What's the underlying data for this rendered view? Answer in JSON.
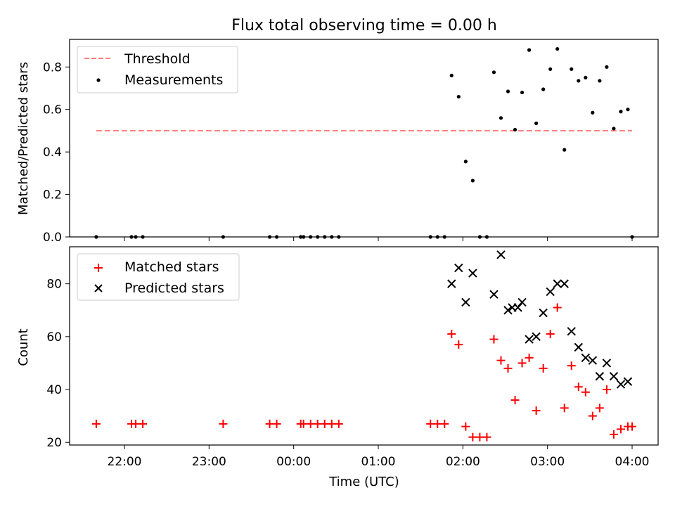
{
  "title": "Flux total observing time = 0.00 h",
  "chart_data": [
    {
      "type": "scatter",
      "ylabel": "Matched/Predicted stars",
      "ylim": [
        0,
        0.93
      ],
      "yticks": [
        "0.0",
        "0.2",
        "0.4",
        "0.6",
        "0.8"
      ],
      "yticks_values": [
        0,
        0.2,
        0.4,
        0.6,
        0.8
      ],
      "legend_position": "upper-left",
      "threshold": {
        "name": "Threshold",
        "value": 0.5,
        "x_range": [
          "21:40",
          "04:00"
        ],
        "color": "#ff7f7f",
        "style": "dashed"
      },
      "series": [
        {
          "name": "Measurements",
          "color": "#000000",
          "marker": "dot",
          "points": [
            [
              "21:40",
              0
            ],
            [
              "22:05",
              0
            ],
            [
              "22:08",
              0
            ],
            [
              "22:13",
              0
            ],
            [
              "23:10",
              0
            ],
            [
              "23:43",
              0
            ],
            [
              "23:48",
              0
            ],
            [
              "00:05",
              0
            ],
            [
              "00:07",
              0
            ],
            [
              "00:12",
              0
            ],
            [
              "00:17",
              0
            ],
            [
              "00:22",
              0
            ],
            [
              "00:27",
              0
            ],
            [
              "00:32",
              0
            ],
            [
              "01:37",
              0
            ],
            [
              "01:42",
              0
            ],
            [
              "01:47",
              0
            ],
            [
              "01:52",
              0.76
            ],
            [
              "01:57",
              0.66
            ],
            [
              "02:02",
              0.355
            ],
            [
              "02:07",
              0.265
            ],
            [
              "02:12",
              0
            ],
            [
              "02:17",
              0
            ],
            [
              "02:22",
              0.775
            ],
            [
              "02:27",
              0.56
            ],
            [
              "02:32",
              0.685
            ],
            [
              "02:37",
              0.505
            ],
            [
              "02:42",
              0.68
            ],
            [
              "02:47",
              0.88
            ],
            [
              "02:52",
              0.535
            ],
            [
              "02:57",
              0.695
            ],
            [
              "03:02",
              0.79
            ],
            [
              "03:07",
              0.885
            ],
            [
              "03:12",
              0.41
            ],
            [
              "03:17",
              0.79
            ],
            [
              "03:22",
              0.735
            ],
            [
              "03:27",
              0.75
            ],
            [
              "03:32",
              0.585
            ],
            [
              "03:37",
              0.735
            ],
            [
              "03:42",
              0.8
            ],
            [
              "03:47",
              0.51
            ],
            [
              "03:52",
              0.59
            ],
            [
              "03:57",
              0.6
            ],
            [
              "04:00",
              0
            ]
          ]
        }
      ]
    },
    {
      "type": "scatter",
      "xlabel": "Time (UTC)",
      "ylabel": "Count",
      "ylim": [
        19,
        94
      ],
      "yticks": [
        "20",
        "40",
        "60",
        "80"
      ],
      "yticks_values": [
        20,
        40,
        60,
        80
      ],
      "xticks": [
        "22:00",
        "23:00",
        "00:00",
        "01:00",
        "02:00",
        "03:00",
        "04:00"
      ],
      "legend_position": "upper-left",
      "series": [
        {
          "name": "Matched stars",
          "color": "#ff0000",
          "marker": "plus",
          "points": [
            [
              "21:40",
              27
            ],
            [
              "22:05",
              27
            ],
            [
              "22:08",
              27
            ],
            [
              "22:13",
              27
            ],
            [
              "23:10",
              27
            ],
            [
              "23:43",
              27
            ],
            [
              "23:48",
              27
            ],
            [
              "00:05",
              27
            ],
            [
              "00:07",
              27
            ],
            [
              "00:12",
              27
            ],
            [
              "00:17",
              27
            ],
            [
              "00:22",
              27
            ],
            [
              "00:27",
              27
            ],
            [
              "00:32",
              27
            ],
            [
              "01:37",
              27
            ],
            [
              "01:42",
              27
            ],
            [
              "01:47",
              27
            ],
            [
              "01:52",
              61
            ],
            [
              "01:57",
              57
            ],
            [
              "02:02",
              26
            ],
            [
              "02:07",
              22
            ],
            [
              "02:12",
              22
            ],
            [
              "02:17",
              22
            ],
            [
              "02:22",
              59
            ],
            [
              "02:27",
              51
            ],
            [
              "02:32",
              48
            ],
            [
              "02:37",
              36
            ],
            [
              "02:42",
              50
            ],
            [
              "02:47",
              52
            ],
            [
              "02:52",
              32
            ],
            [
              "02:57",
              48
            ],
            [
              "03:02",
              61
            ],
            [
              "03:07",
              71
            ],
            [
              "03:12",
              33
            ],
            [
              "03:17",
              49
            ],
            [
              "03:22",
              41
            ],
            [
              "03:27",
              39
            ],
            [
              "03:32",
              30
            ],
            [
              "03:37",
              33
            ],
            [
              "03:42",
              40
            ],
            [
              "03:47",
              23
            ],
            [
              "03:52",
              25
            ],
            [
              "03:57",
              26
            ],
            [
              "04:00",
              26
            ]
          ]
        },
        {
          "name": "Predicted stars",
          "color": "#000000",
          "marker": "x",
          "points": [
            [
              "01:52",
              80
            ],
            [
              "01:57",
              86
            ],
            [
              "02:02",
              73
            ],
            [
              "02:07",
              84
            ],
            [
              "02:22",
              76
            ],
            [
              "02:27",
              91
            ],
            [
              "02:32",
              70
            ],
            [
              "02:35",
              71
            ],
            [
              "02:39",
              71
            ],
            [
              "02:42",
              73
            ],
            [
              "02:47",
              59
            ],
            [
              "02:52",
              60
            ],
            [
              "02:57",
              69
            ],
            [
              "03:02",
              77
            ],
            [
              "03:07",
              80
            ],
            [
              "03:12",
              80
            ],
            [
              "03:17",
              62
            ],
            [
              "03:22",
              56
            ],
            [
              "03:27",
              52
            ],
            [
              "03:32",
              51
            ],
            [
              "03:37",
              45
            ],
            [
              "03:42",
              50
            ],
            [
              "03:47",
              45
            ],
            [
              "03:52",
              42
            ],
            [
              "03:57",
              43
            ]
          ]
        }
      ]
    }
  ]
}
